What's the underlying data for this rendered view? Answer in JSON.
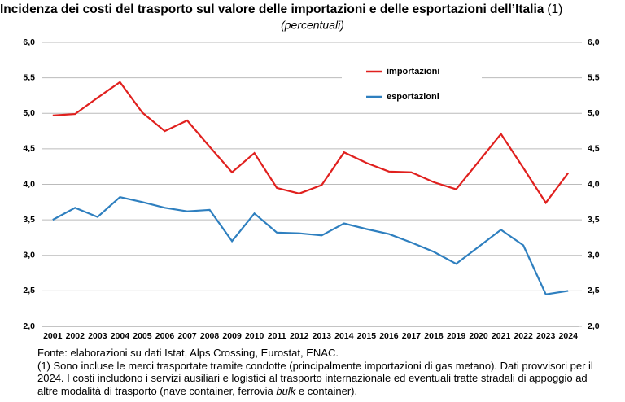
{
  "chart_data": {
    "type": "line",
    "title": "Incidenza dei costi del trasporto sul valore delle importazioni e delle esportazioni dell’Italia",
    "title_note": "(1)",
    "subtitle": "(percentuali)",
    "categories": [
      "2001",
      "2002",
      "2003",
      "2004",
      "2005",
      "2006",
      "2007",
      "2008",
      "2009",
      "2010",
      "2011",
      "2012",
      "2013",
      "2014",
      "2015",
      "2016",
      "2017",
      "2018",
      "2019",
      "2020",
      "2021",
      "2022",
      "2023",
      "2024"
    ],
    "series": [
      {
        "name": "importazioni",
        "color": "#e0201e",
        "values": [
          4.97,
          4.99,
          5.22,
          5.44,
          5.01,
          4.75,
          4.9,
          4.53,
          4.17,
          4.44,
          3.95,
          3.87,
          3.99,
          4.45,
          4.3,
          4.18,
          4.17,
          4.03,
          3.93,
          4.32,
          4.71,
          4.23,
          3.74,
          4.16
        ]
      },
      {
        "name": "esportazioni",
        "color": "#2e7fbf",
        "values": [
          3.5,
          3.67,
          3.54,
          3.82,
          3.75,
          3.67,
          3.62,
          3.64,
          3.2,
          3.59,
          3.32,
          3.31,
          3.28,
          3.45,
          3.37,
          3.3,
          3.18,
          3.05,
          2.88,
          3.12,
          3.36,
          3.14,
          2.45,
          2.5
        ]
      }
    ],
    "ylim": [
      2,
      6
    ],
    "yticks": [
      {
        "value": 2,
        "label": "2,0"
      },
      {
        "value": 2.5,
        "label": "2,5"
      },
      {
        "value": 3,
        "label": "3,0"
      },
      {
        "value": 3.5,
        "label": "3,5"
      },
      {
        "value": 4,
        "label": "4,0"
      },
      {
        "value": 4.5,
        "label": "4,5"
      },
      {
        "value": 5,
        "label": "5,0"
      },
      {
        "value": 5.5,
        "label": "5,5"
      },
      {
        "value": 6,
        "label": "6,0"
      }
    ],
    "y2lim": [
      2,
      6
    ],
    "y2ticks": [
      {
        "value": 2,
        "label": "2,0"
      },
      {
        "value": 2.5,
        "label": "2,5"
      },
      {
        "value": 3,
        "label": "3,0"
      },
      {
        "value": 3.5,
        "label": "3,5"
      },
      {
        "value": 4,
        "label": "4,0"
      },
      {
        "value": 4.5,
        "label": "4,5"
      },
      {
        "value": 5,
        "label": "5,0"
      },
      {
        "value": 5.5,
        "label": "5,5"
      },
      {
        "value": 6,
        "label": "6,0"
      }
    ],
    "grid": true,
    "legend": "top"
  },
  "notes": {
    "source": "Fonte: elaborazioni su dati Istat, Alps Crossing, Eurostat, ENAC.",
    "note_before": "(1) Sono incluse le merci trasportate tramite condotte (principalmente importazioni di gas metano). Dati provvisori per il 2024. I costi includono i servizi ausiliari e logistici al trasporto internazionale ed eventuali tratte stradali di appoggio ad altre modalità di trasporto (nave container, ferrovia ",
    "note_italic": "bulk",
    "note_after": " e container)."
  }
}
